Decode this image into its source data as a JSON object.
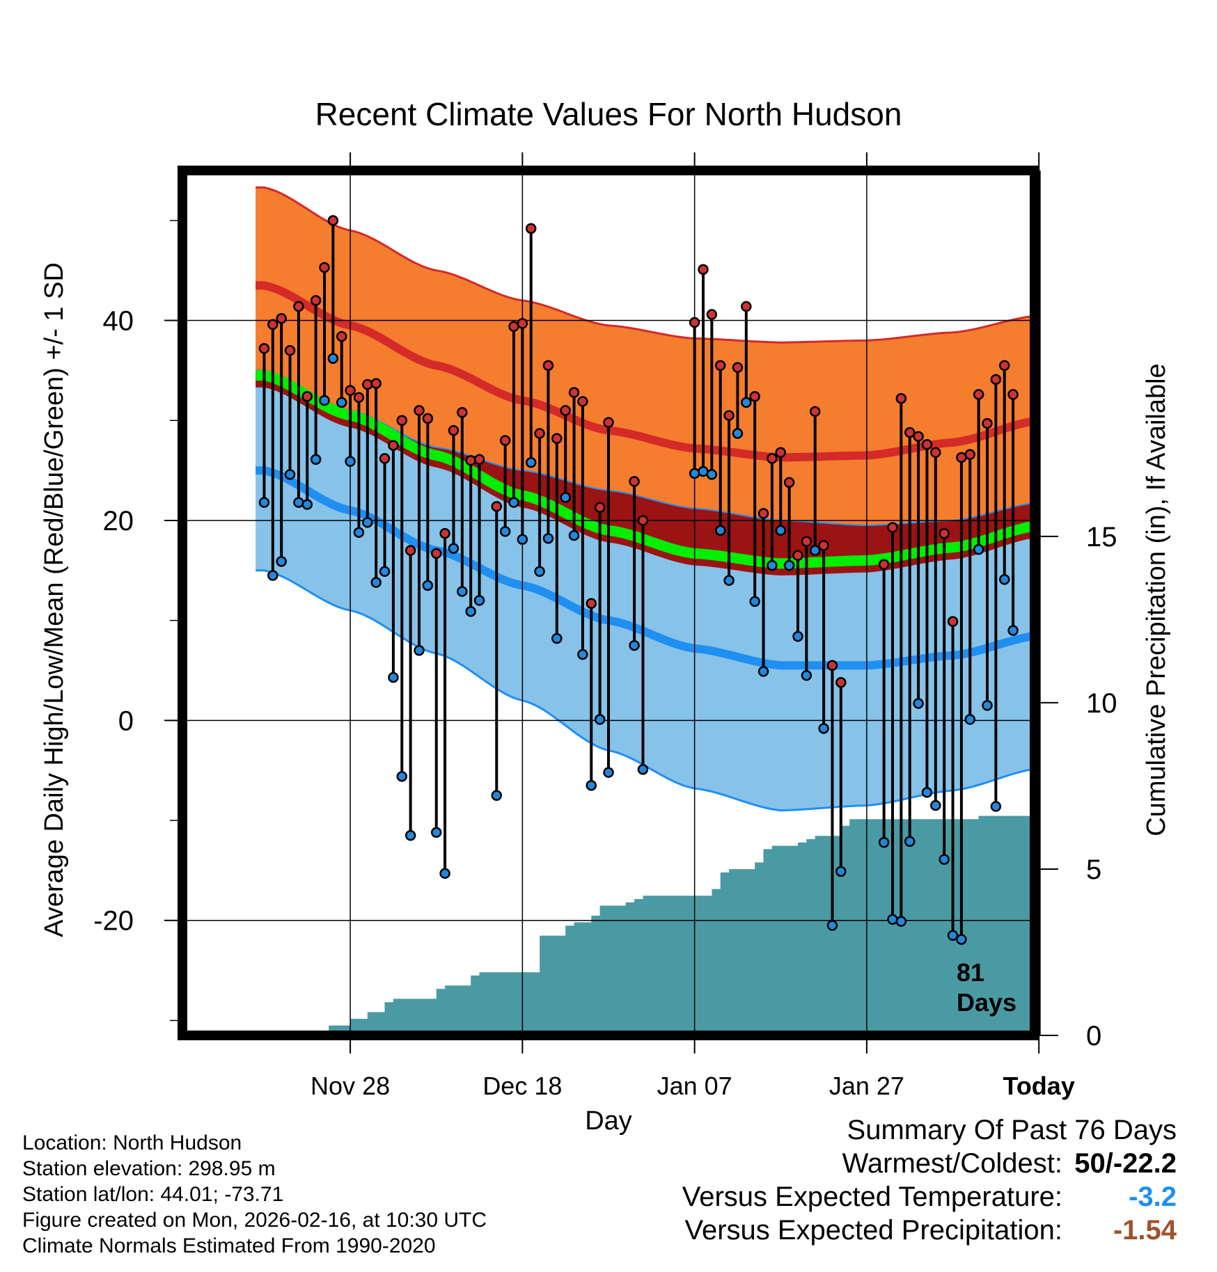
{
  "chart_data": {
    "type": "line",
    "title": "Recent Climate Values For North Hudson",
    "xlabel": "Day",
    "ylabel": "Average Daily High/Low/Mean (Red/Blue/Green) +/- 1 SD",
    "y2label": "Cumulative Precipitation (in), If Available",
    "xlim": [
      -9.5,
      89.5
    ],
    "ylim": [
      -31.5,
      55
    ],
    "y2lim": [
      0,
      26
    ],
    "x_ticks": [
      {
        "day": 10,
        "label": "Nov 28"
      },
      {
        "day": 30,
        "label": "Dec 18"
      },
      {
        "day": 50,
        "label": "Jan 07"
      },
      {
        "day": 70,
        "label": "Jan 27"
      },
      {
        "day": 90,
        "label": "Today"
      }
    ],
    "y_ticks": [
      40,
      20,
      0,
      -20
    ],
    "y_tick_labels": [
      "40",
      "20",
      "0",
      "-20"
    ],
    "y_minor_ticks": [
      50,
      30,
      10,
      -10,
      -30
    ],
    "y2_ticks": [
      15,
      10,
      5,
      0
    ],
    "y2_tick_labels": [
      "15",
      "10",
      "5",
      "0"
    ],
    "today_day": 90,
    "window_label": [
      "81",
      "Days"
    ],
    "normals": {
      "days": [
        0,
        10,
        20,
        30,
        40,
        50,
        60,
        70,
        80,
        90,
        99
      ],
      "high_mean": [
        43.5,
        39.5,
        35.5,
        32,
        29,
        27.2,
        26.3,
        26.5,
        27.8,
        30,
        33
      ],
      "high_sd": [
        9.8,
        9.5,
        9.5,
        10,
        10.5,
        11,
        11.5,
        11.5,
        11,
        10.5,
        10.5
      ],
      "low_mean": [
        25,
        21,
        17,
        13.5,
        10,
        7.2,
        5.5,
        5.5,
        6.5,
        8.5,
        11
      ],
      "low_sd": [
        10,
        10,
        10.3,
        11.5,
        13,
        14,
        14.5,
        14,
        13.5,
        13.3,
        13
      ],
      "mean": [
        34.5,
        30.5,
        26.5,
        22.5,
        19,
        16.7,
        15.7,
        16,
        17.3,
        19.5,
        22
      ]
    },
    "series": [
      {
        "name": "high",
        "color": "#cc3333",
        "values": [
          37.2,
          39.6,
          40.2,
          37,
          41.4,
          32.4,
          42,
          45.3,
          50,
          38.4,
          33,
          32.3,
          33.6,
          33.7,
          26.2,
          27.5,
          30,
          17,
          31,
          30.2,
          16.7,
          18.7,
          29,
          30.8,
          26,
          26.1,
          null,
          21.4,
          28,
          39.4,
          39.7,
          49.2,
          28.7,
          35.5,
          28.2,
          31,
          32.8,
          31.9,
          11.7,
          21.3,
          29.8,
          null,
          null,
          23.9,
          20,
          null,
          null,
          null,
          null,
          null,
          39.8,
          45.1,
          40.6,
          35.5,
          30.5,
          35.3,
          41.4,
          32.4,
          20.7,
          26.2,
          26.8,
          23.8,
          16.5,
          17.9,
          30.9,
          17.5,
          5.5,
          3.8,
          null,
          null,
          null,
          null,
          15.6,
          19.3,
          32.2,
          28.8,
          28.4,
          27.6,
          26.8,
          18.7,
          9.9,
          26.3,
          26.6,
          32.6,
          29.7,
          34.1,
          35.5,
          32.6
        ]
      },
      {
        "name": "low",
        "color": "#2288dd",
        "values": [
          21.8,
          14.5,
          15.9,
          24.6,
          21.8,
          21.6,
          26.1,
          32,
          36.2,
          31.8,
          25.9,
          18.8,
          19.8,
          13.8,
          14.9,
          4.3,
          -5.6,
          -11.5,
          7,
          13.5,
          -11.2,
          -15.3,
          17.2,
          12.9,
          10.9,
          12,
          null,
          -7.5,
          18.9,
          21.8,
          18.1,
          25.8,
          14.9,
          18.2,
          8.2,
          22.3,
          18.5,
          6.6,
          -6.5,
          0.1,
          -5.2,
          null,
          null,
          7.5,
          -4.9,
          null,
          null,
          null,
          null,
          null,
          24.7,
          24.9,
          24.6,
          19,
          14,
          28.7,
          31.8,
          11.9,
          4.9,
          15.5,
          19,
          15.5,
          8.4,
          4.5,
          17,
          -0.8,
          -20.5,
          -15.1,
          null,
          null,
          null,
          null,
          -12.2,
          -19.9,
          -20.1,
          -12.1,
          1.7,
          -7.2,
          -8.5,
          -13.9,
          -21.5,
          -21.9,
          0.1,
          17.1,
          1.5,
          -8.6,
          14.1,
          9
        ]
      }
    ],
    "precipitation": {
      "days": [
        0,
        7,
        7.5,
        10,
        11,
        12,
        13,
        14,
        15,
        16,
        17,
        18,
        19,
        20,
        21,
        22,
        23,
        24,
        25,
        26,
        27,
        28,
        29,
        30,
        31,
        32,
        33,
        34,
        35,
        36,
        37,
        38,
        39,
        40,
        41,
        42,
        43,
        44,
        45,
        46,
        47,
        48,
        49,
        50,
        51,
        52,
        53,
        54,
        55,
        56,
        57,
        58,
        59,
        60,
        61,
        62,
        63,
        64,
        65,
        66,
        67,
        68,
        69,
        70,
        71,
        72,
        73,
        74,
        75,
        76,
        77,
        78,
        79,
        80,
        81,
        82,
        83,
        84,
        85,
        86,
        87,
        88,
        89,
        90,
        91,
        92,
        93,
        94,
        95,
        96,
        97,
        98,
        99
      ],
      "values": [
        0,
        0,
        0.3,
        0.5,
        0.5,
        0.7,
        0.7,
        1,
        1.1,
        1.1,
        1.1,
        1.1,
        1.1,
        1.4,
        1.5,
        1.5,
        1.5,
        1.8,
        1.9,
        1.9,
        1.9,
        1.9,
        1.9,
        1.9,
        1.9,
        3,
        3,
        3,
        3.3,
        3.4,
        3.4,
        3.6,
        3.9,
        3.9,
        3.9,
        4,
        4.1,
        4.2,
        4.2,
        4.2,
        4.2,
        4.2,
        4.2,
        4.2,
        4.2,
        4.4,
        4.9,
        5,
        5,
        5,
        5.2,
        5.6,
        5.7,
        5.7,
        5.7,
        5.8,
        5.9,
        6,
        6,
        6,
        6.3,
        6.5,
        6.5,
        6.5,
        6.5,
        6.5,
        6.5,
        6.5,
        6.5,
        6.5,
        6.5,
        6.5,
        6.5,
        6.5,
        6.5,
        6.5,
        6.6,
        6.6,
        6.6,
        6.6,
        6.6,
        6.6,
        6.6,
        6.6,
        6.6,
        6.6,
        6.6,
        6.6,
        6.6,
        6.6,
        6.6,
        6.6,
        6.6
      ]
    },
    "colors": {
      "high_band": "#f57d2e",
      "high_line": "#d42a28",
      "mean_band": "#9b1313",
      "mean_line": "#00ee00",
      "low_band": "#87c2e8",
      "low_line": "#1f8ff2",
      "precip_fill": "#4a9aa3"
    }
  },
  "info": {
    "location": "Location: North Hudson",
    "elevation": "Station elevation: 298.95 m",
    "latlon": "Station lat/lon: 44.01; -73.71",
    "created": "Figure created on Mon, 2026-02-16, at 10:30 UTC",
    "normals": "Climate Normals Estimated From 1990-2020"
  },
  "summary": {
    "title": "Summary Of Past 76 Days",
    "warmest_label": "Warmest/Coldest:",
    "warmest_value": "50/-22.2",
    "temp_label": "Versus Expected Temperature:",
    "temp_value": "-3.2",
    "temp_color": "#1f8ff2",
    "precip_label": "Versus Expected Precipitation:",
    "precip_value": "-1.54",
    "precip_color": "#a0522d"
  }
}
